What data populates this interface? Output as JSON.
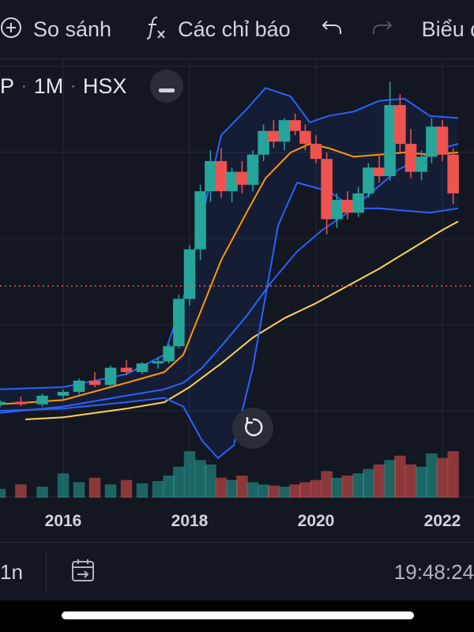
{
  "toolbar": {
    "compare_label": "So sánh",
    "indicators_label": "Các chỉ báo",
    "chart_type_label": "Biểu đ"
  },
  "legend": {
    "symbol_fragment": "P",
    "interval": "1M",
    "exchange": "HSX"
  },
  "bottom_bar": {
    "range_label": "1n",
    "clock": "19:48:24"
  },
  "colors": {
    "background": "#131722",
    "up": "#26a69a",
    "down": "#ef5350",
    "bollinger": "#2962ff",
    "ma_fast": "#ff9800",
    "ma_slow": "#ffd54f",
    "price_line": "#ef5350"
  },
  "chart_data": {
    "type": "candlestick",
    "interval": "1M",
    "x_ticks": [
      "2016",
      "2018",
      "2020",
      "2022"
    ],
    "x_range": [
      2015.0,
      2022.25
    ],
    "y_range": [
      0,
      100
    ],
    "volume_range": [
      0,
      100
    ],
    "price_line_level": 49,
    "grid": true,
    "candles": [
      {
        "t": 2015.0,
        "o": 21.5,
        "h": 22.6,
        "l": 20.8,
        "c": 22.1
      },
      {
        "t": 2015.33,
        "o": 22.1,
        "h": 23.3,
        "l": 21.1,
        "c": 21.5
      },
      {
        "t": 2015.67,
        "o": 21.5,
        "h": 24.0,
        "l": 21.0,
        "c": 23.5
      },
      {
        "t": 2016.0,
        "o": 23.5,
        "h": 25.0,
        "l": 22.8,
        "c": 24.4
      },
      {
        "t": 2016.25,
        "o": 24.4,
        "h": 27.5,
        "l": 23.8,
        "c": 27.0
      },
      {
        "t": 2016.5,
        "o": 27.0,
        "h": 29.0,
        "l": 25.5,
        "c": 26.0
      },
      {
        "t": 2016.75,
        "o": 26.0,
        "h": 30.5,
        "l": 25.8,
        "c": 30.0
      },
      {
        "t": 2017.0,
        "o": 30.0,
        "h": 31.8,
        "l": 28.3,
        "c": 29.0
      },
      {
        "t": 2017.25,
        "o": 29.0,
        "h": 31.3,
        "l": 28.5,
        "c": 31.0
      },
      {
        "t": 2017.5,
        "o": 31.0,
        "h": 32.2,
        "l": 29.8,
        "c": 31.5
      },
      {
        "t": 2017.67,
        "o": 31.5,
        "h": 35.5,
        "l": 31.0,
        "c": 35.0
      },
      {
        "t": 2017.83,
        "o": 35.0,
        "h": 47.0,
        "l": 34.5,
        "c": 46.0
      },
      {
        "t": 2018.0,
        "o": 46.0,
        "h": 58.5,
        "l": 44.5,
        "c": 57.5
      },
      {
        "t": 2018.17,
        "o": 57.5,
        "h": 72.5,
        "l": 55.0,
        "c": 71.0
      },
      {
        "t": 2018.33,
        "o": 71.0,
        "h": 80.5,
        "l": 68.5,
        "c": 78.0
      },
      {
        "t": 2018.5,
        "o": 78.0,
        "h": 81.0,
        "l": 69.5,
        "c": 71.0
      },
      {
        "t": 2018.67,
        "o": 71.0,
        "h": 76.5,
        "l": 68.5,
        "c": 75.5
      },
      {
        "t": 2018.83,
        "o": 75.5,
        "h": 78.0,
        "l": 70.5,
        "c": 72.5
      },
      {
        "t": 2019.0,
        "o": 72.5,
        "h": 80.5,
        "l": 71.0,
        "c": 79.5
      },
      {
        "t": 2019.17,
        "o": 79.5,
        "h": 86.5,
        "l": 78.0,
        "c": 85.0
      },
      {
        "t": 2019.33,
        "o": 85.0,
        "h": 87.5,
        "l": 81.0,
        "c": 82.5
      },
      {
        "t": 2019.5,
        "o": 82.5,
        "h": 88.0,
        "l": 80.5,
        "c": 87.5
      },
      {
        "t": 2019.67,
        "o": 87.5,
        "h": 89.0,
        "l": 84.0,
        "c": 85.0
      },
      {
        "t": 2019.83,
        "o": 85.0,
        "h": 86.5,
        "l": 80.5,
        "c": 82.0
      },
      {
        "t": 2020.0,
        "o": 82.0,
        "h": 84.0,
        "l": 77.5,
        "c": 78.5
      },
      {
        "t": 2020.17,
        "o": 78.5,
        "h": 80.0,
        "l": 61.0,
        "c": 64.5
      },
      {
        "t": 2020.33,
        "o": 64.5,
        "h": 70.5,
        "l": 62.5,
        "c": 69.0
      },
      {
        "t": 2020.5,
        "o": 69.0,
        "h": 71.0,
        "l": 64.5,
        "c": 66.0
      },
      {
        "t": 2020.67,
        "o": 66.0,
        "h": 72.0,
        "l": 65.0,
        "c": 70.5
      },
      {
        "t": 2020.83,
        "o": 70.5,
        "h": 77.5,
        "l": 69.5,
        "c": 76.5
      },
      {
        "t": 2021.0,
        "o": 76.5,
        "h": 79.5,
        "l": 73.0,
        "c": 74.5
      },
      {
        "t": 2021.17,
        "o": 74.5,
        "h": 96.5,
        "l": 73.5,
        "c": 91.0
      },
      {
        "t": 2021.33,
        "o": 91.0,
        "h": 93.5,
        "l": 80.0,
        "c": 82.0
      },
      {
        "t": 2021.5,
        "o": 82.0,
        "h": 85.5,
        "l": 74.0,
        "c": 75.5
      },
      {
        "t": 2021.67,
        "o": 75.5,
        "h": 80.5,
        "l": 73.5,
        "c": 79.0
      },
      {
        "t": 2021.83,
        "o": 79.0,
        "h": 88.0,
        "l": 77.5,
        "c": 86.0
      },
      {
        "t": 2022.0,
        "o": 86.0,
        "h": 87.5,
        "l": 78.0,
        "c": 79.5
      },
      {
        "t": 2022.17,
        "o": 79.5,
        "h": 81.0,
        "l": 68.0,
        "c": 70.5
      }
    ],
    "volume": [
      8,
      12,
      10,
      22,
      14,
      18,
      12,
      16,
      13,
      15,
      20,
      28,
      42,
      34,
      30,
      18,
      16,
      20,
      14,
      12,
      11,
      10,
      12,
      14,
      16,
      24,
      18,
      20,
      22,
      26,
      30,
      34,
      38,
      30,
      28,
      40,
      36,
      42
    ],
    "bollinger_upper": [
      [
        2015.0,
        25
      ],
      [
        2016.0,
        25.5
      ],
      [
        2017.0,
        28.5
      ],
      [
        2017.6,
        33
      ],
      [
        2017.9,
        46
      ],
      [
        2018.2,
        65
      ],
      [
        2018.5,
        84
      ],
      [
        2018.9,
        90
      ],
      [
        2019.2,
        95
      ],
      [
        2019.6,
        93
      ],
      [
        2019.9,
        87
      ],
      [
        2020.2,
        88.5
      ],
      [
        2020.6,
        89.5
      ],
      [
        2021.0,
        92
      ],
      [
        2021.4,
        92.5
      ],
      [
        2021.8,
        88.5
      ],
      [
        2022.25,
        88
      ]
    ],
    "bollinger_lower": [
      [
        2015.0,
        20
      ],
      [
        2016.0,
        20.5
      ],
      [
        2017.0,
        22
      ],
      [
        2017.6,
        23
      ],
      [
        2017.9,
        21
      ],
      [
        2018.2,
        13
      ],
      [
        2018.45,
        9
      ],
      [
        2018.7,
        12
      ],
      [
        2019.0,
        30
      ],
      [
        2019.4,
        63
      ],
      [
        2019.7,
        73
      ],
      [
        2020.2,
        71
      ],
      [
        2020.6,
        67
      ],
      [
        2021.0,
        67
      ],
      [
        2021.4,
        66.5
      ],
      [
        2021.8,
        66
      ],
      [
        2022.25,
        67
      ]
    ],
    "bollinger_middle": [
      [
        2015.0,
        19.5
      ],
      [
        2016.0,
        21
      ],
      [
        2017.0,
        23.5
      ],
      [
        2017.6,
        25
      ],
      [
        2017.9,
        26.5
      ],
      [
        2018.2,
        30
      ],
      [
        2018.5,
        35
      ],
      [
        2018.9,
        42
      ],
      [
        2019.3,
        50
      ],
      [
        2019.7,
        57
      ],
      [
        2020.1,
        62
      ],
      [
        2020.5,
        66
      ],
      [
        2020.9,
        71
      ],
      [
        2021.3,
        76
      ],
      [
        2021.7,
        79
      ],
      [
        2022.0,
        81
      ],
      [
        2022.25,
        82
      ]
    ],
    "ma_fast": [
      [
        2015.0,
        21.5
      ],
      [
        2016.0,
        22.5
      ],
      [
        2017.0,
        26.5
      ],
      [
        2017.6,
        29
      ],
      [
        2017.9,
        33
      ],
      [
        2018.2,
        44
      ],
      [
        2018.5,
        55
      ],
      [
        2018.9,
        66
      ],
      [
        2019.2,
        74
      ],
      [
        2019.6,
        80
      ],
      [
        2019.9,
        82
      ],
      [
        2020.2,
        81
      ],
      [
        2020.6,
        79
      ],
      [
        2021.0,
        79.5
      ],
      [
        2021.4,
        80
      ],
      [
        2021.8,
        79.5
      ],
      [
        2022.25,
        80
      ]
    ],
    "ma_slow": [
      [
        2015.4,
        18
      ],
      [
        2016.0,
        18.5
      ],
      [
        2017.0,
        20.5
      ],
      [
        2017.6,
        22
      ],
      [
        2018.0,
        25.5
      ],
      [
        2018.5,
        31
      ],
      [
        2019.0,
        37
      ],
      [
        2019.5,
        41.5
      ],
      [
        2020.0,
        45
      ],
      [
        2020.5,
        49
      ],
      [
        2021.0,
        53
      ],
      [
        2021.5,
        57.5
      ],
      [
        2022.0,
        62
      ],
      [
        2022.25,
        64
      ]
    ]
  }
}
